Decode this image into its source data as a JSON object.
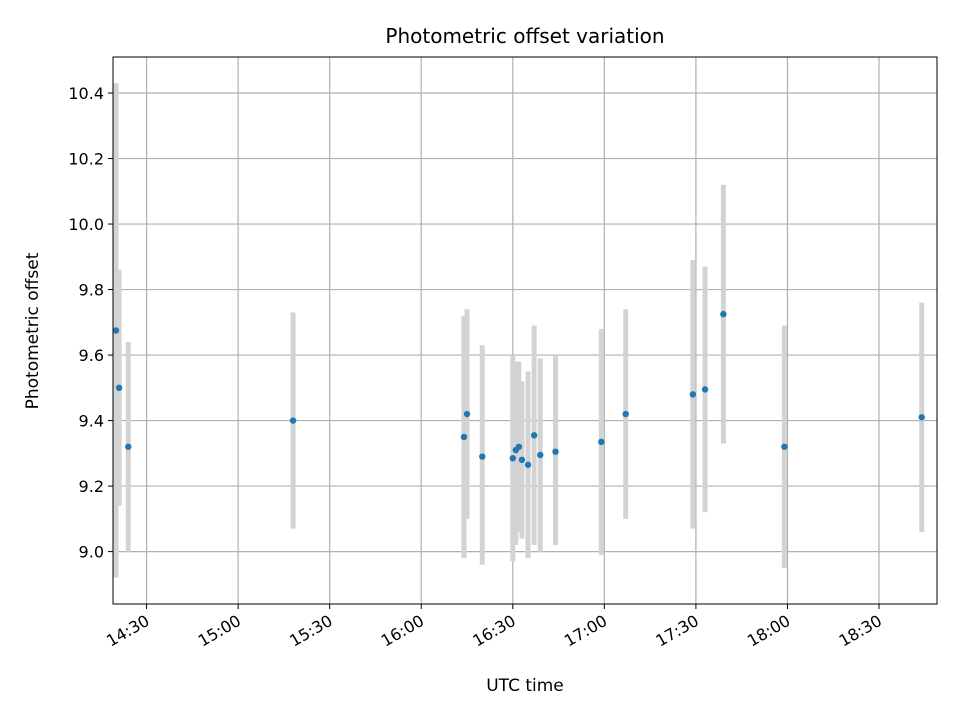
{
  "chart_data": {
    "type": "scatter",
    "title": "Photometric offset variation",
    "xlabel": "UTC time",
    "ylabel": "Photometric offset",
    "grid": true,
    "x_ticks": [
      "14:30",
      "15:00",
      "15:30",
      "16:00",
      "16:30",
      "17:00",
      "17:30",
      "18:00",
      "18:30"
    ],
    "y_ticks": [
      "9.0",
      "9.2",
      "9.4",
      "9.6",
      "9.8",
      "10.0",
      "10.2",
      "10.4"
    ],
    "xlim": [
      "14:19",
      "18:49"
    ],
    "ylim": [
      8.84,
      10.51
    ],
    "colors": {
      "point": "#1f77b4",
      "errorbar": "#d3d3d3",
      "grid": "#b0b0b0"
    },
    "series": [
      {
        "points": [
          {
            "x": "14:20",
            "y": 9.675,
            "ylo": 8.92,
            "yhi": 10.43
          },
          {
            "x": "14:21",
            "y": 9.5,
            "ylo": 9.14,
            "yhi": 9.86
          },
          {
            "x": "14:24",
            "y": 9.32,
            "ylo": 9.0,
            "yhi": 9.64
          },
          {
            "x": "15:18",
            "y": 9.4,
            "ylo": 9.07,
            "yhi": 9.73
          },
          {
            "x": "16:14",
            "y": 9.35,
            "ylo": 8.98,
            "yhi": 9.72
          },
          {
            "x": "16:15",
            "y": 9.42,
            "ylo": 9.1,
            "yhi": 9.74
          },
          {
            "x": "16:20",
            "y": 9.29,
            "ylo": 8.96,
            "yhi": 9.63
          },
          {
            "x": "16:30",
            "y": 9.285,
            "ylo": 8.97,
            "yhi": 9.6
          },
          {
            "x": "16:31",
            "y": 9.31,
            "ylo": 9.02,
            "yhi": 9.58
          },
          {
            "x": "16:32",
            "y": 9.32,
            "ylo": 9.06,
            "yhi": 9.58
          },
          {
            "x": "16:33",
            "y": 9.28,
            "ylo": 9.04,
            "yhi": 9.52
          },
          {
            "x": "16:35",
            "y": 9.265,
            "ylo": 8.98,
            "yhi": 9.55
          },
          {
            "x": "16:37",
            "y": 9.355,
            "ylo": 9.02,
            "yhi": 9.69
          },
          {
            "x": "16:39",
            "y": 9.295,
            "ylo": 9.0,
            "yhi": 9.59
          },
          {
            "x": "16:44",
            "y": 9.305,
            "ylo": 9.02,
            "yhi": 9.6
          },
          {
            "x": "16:59",
            "y": 9.335,
            "ylo": 8.99,
            "yhi": 9.68
          },
          {
            "x": "17:07",
            "y": 9.42,
            "ylo": 9.1,
            "yhi": 9.74
          },
          {
            "x": "17:29",
            "y": 9.48,
            "ylo": 9.07,
            "yhi": 9.89
          },
          {
            "x": "17:33",
            "y": 9.495,
            "ylo": 9.12,
            "yhi": 9.87
          },
          {
            "x": "17:39",
            "y": 9.725,
            "ylo": 9.33,
            "yhi": 10.12
          },
          {
            "x": "17:59",
            "y": 9.32,
            "ylo": 8.95,
            "yhi": 9.69
          },
          {
            "x": "18:44",
            "y": 9.41,
            "ylo": 9.06,
            "yhi": 9.76
          }
        ]
      }
    ]
  }
}
